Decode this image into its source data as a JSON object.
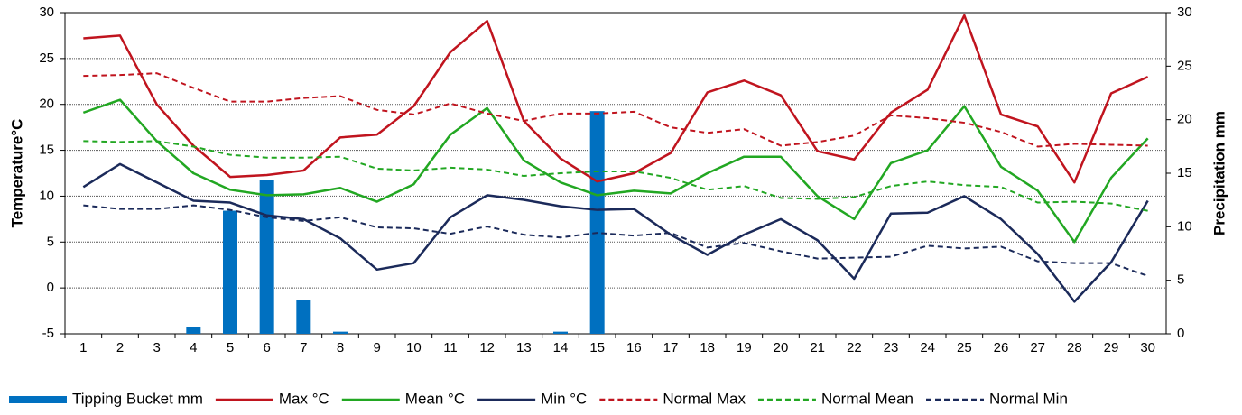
{
  "chart_data": {
    "type": "combo",
    "y_label": "Temperature°C",
    "y2_label": "Precipitation mm",
    "categories": [
      "1",
      "2",
      "3",
      "4",
      "5",
      "6",
      "7",
      "8",
      "9",
      "10",
      "11",
      "12",
      "13",
      "14",
      "15",
      "16",
      "17",
      "18",
      "19",
      "20",
      "21",
      "22",
      "23",
      "24",
      "25",
      "26",
      "27",
      "28",
      "29",
      "30"
    ],
    "ylim": [
      -5,
      30
    ],
    "yticks": [
      -5,
      0,
      5,
      10,
      15,
      20,
      25,
      30
    ],
    "y2lim": [
      0,
      30
    ],
    "y2ticks": [
      0,
      5,
      10,
      15,
      20,
      25,
      30
    ],
    "grid": true,
    "legend": "bottom",
    "series": [
      {
        "name": "Tipping Bucket mm",
        "type": "bar",
        "axis": "y2",
        "color": "#0070c0",
        "values": [
          0,
          0,
          0,
          0.6,
          11.5,
          14.4,
          3.2,
          0.2,
          0,
          0,
          0,
          0,
          0,
          0.2,
          20.8,
          0,
          0,
          0,
          0,
          0,
          0,
          0,
          0,
          0,
          0,
          0,
          0,
          0,
          0,
          0
        ]
      },
      {
        "name": "Max °C",
        "type": "line",
        "color": "#c0141e",
        "dashed": false,
        "values": [
          27.2,
          27.5,
          20,
          15.5,
          12.1,
          12.3,
          12.8,
          16.4,
          16.7,
          19.8,
          25.7,
          29.1,
          18.2,
          14.1,
          11.6,
          12.5,
          14.7,
          21.3,
          22.6,
          21,
          14.9,
          14,
          19.1,
          21.6,
          29.7,
          18.9,
          17.6,
          11.5,
          21.2,
          23
        ]
      },
      {
        "name": "Mean °C",
        "type": "line",
        "color": "#22a722",
        "dashed": false,
        "values": [
          19.1,
          20.5,
          16,
          12.5,
          10.7,
          10.1,
          10.2,
          10.9,
          9.4,
          11.3,
          16.7,
          19.6,
          13.9,
          11.5,
          10.1,
          10.6,
          10.3,
          12.5,
          14.3,
          14.3,
          10,
          7.5,
          13.6,
          15,
          19.8,
          13.2,
          10.6,
          5,
          12,
          16.3
        ]
      },
      {
        "name": "Min °C",
        "type": "line",
        "color": "#1b2a5a",
        "dashed": false,
        "values": [
          11,
          13.5,
          11.5,
          9.5,
          9.3,
          7.9,
          7.5,
          5.4,
          2,
          2.7,
          7.7,
          10.1,
          9.6,
          8.9,
          8.5,
          8.6,
          5.8,
          3.6,
          5.8,
          7.5,
          5.2,
          1,
          8.1,
          8.2,
          10,
          7.5,
          3.7,
          -1.5,
          2.8,
          9.5
        ]
      },
      {
        "name": "Normal Max",
        "type": "line",
        "color": "#c0141e",
        "dashed": true,
        "values": [
          23.1,
          23.2,
          23.4,
          21.8,
          20.3,
          20.3,
          20.7,
          20.9,
          19.4,
          18.9,
          20.1,
          19,
          18.2,
          19,
          19,
          19.2,
          17.5,
          16.9,
          17.3,
          15.5,
          15.9,
          16.6,
          18.8,
          18.5,
          18,
          17,
          15.4,
          15.7,
          15.6,
          15.5
        ]
      },
      {
        "name": "Normal Mean",
        "type": "line",
        "color": "#22a722",
        "dashed": true,
        "values": [
          16,
          15.9,
          16,
          15.4,
          14.5,
          14.2,
          14.2,
          14.3,
          13,
          12.8,
          13.1,
          12.9,
          12.2,
          12.5,
          12.7,
          12.7,
          12,
          10.7,
          11.1,
          9.8,
          9.7,
          9.9,
          11.1,
          11.6,
          11.2,
          11,
          9.3,
          9.4,
          9.2,
          8.4
        ]
      },
      {
        "name": "Normal Min",
        "type": "line",
        "color": "#1b2a5a",
        "dashed": true,
        "values": [
          9,
          8.6,
          8.6,
          9,
          8.5,
          7.7,
          7.3,
          7.7,
          6.6,
          6.5,
          5.9,
          6.7,
          5.8,
          5.5,
          6,
          5.7,
          6,
          4.4,
          4.9,
          4,
          3.2,
          3.3,
          3.4,
          4.6,
          4.3,
          4.5,
          2.9,
          2.7,
          2.7,
          1.3
        ]
      }
    ]
  }
}
